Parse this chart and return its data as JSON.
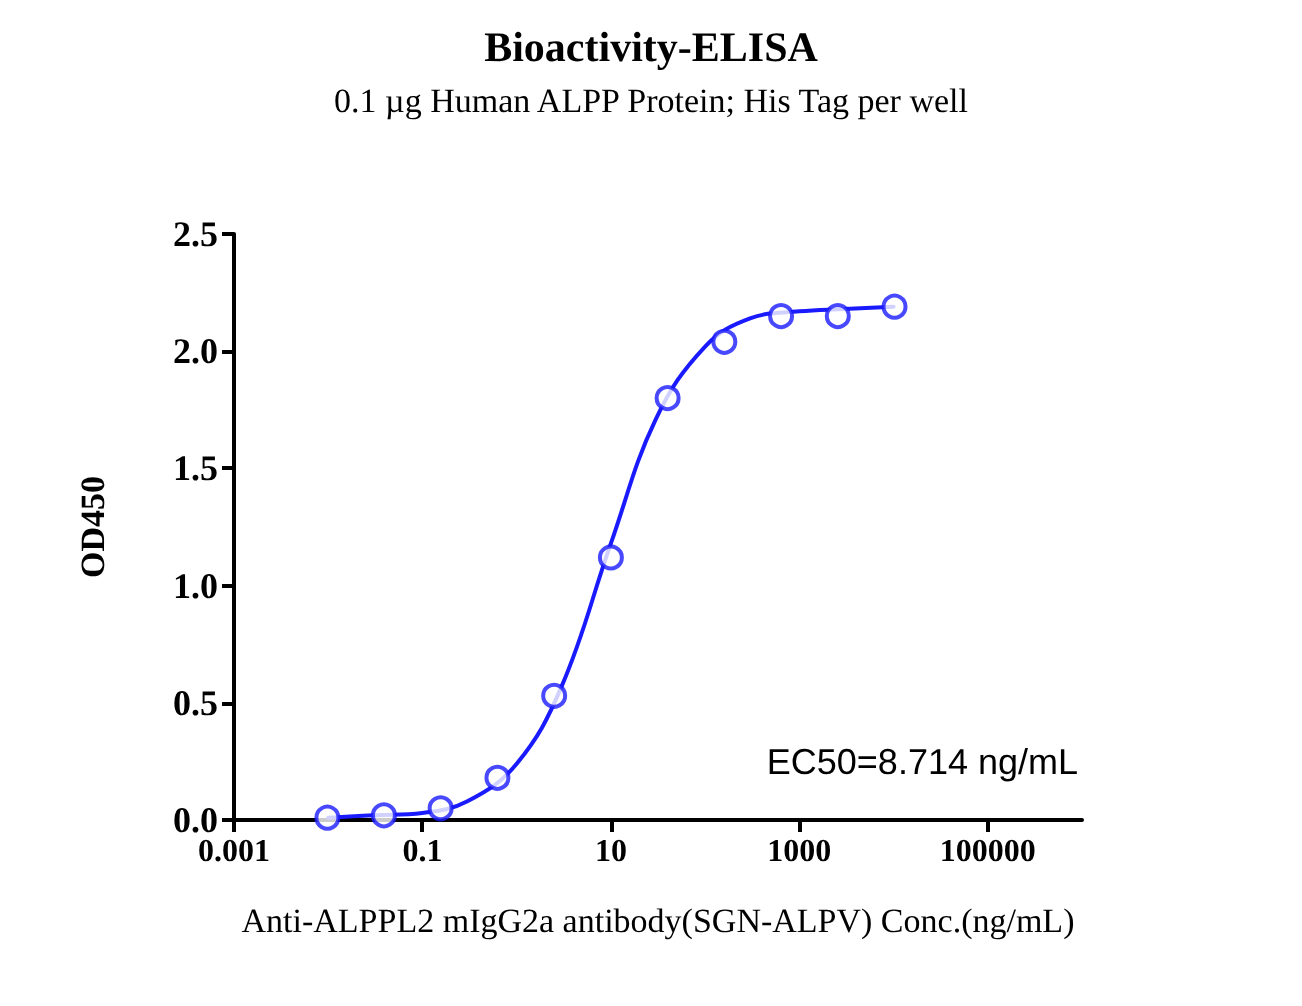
{
  "chart_data": {
    "type": "scatter",
    "title": "Bioactivity-ELISA",
    "subtitle": "0.1 µg Human ALPP Protein; His Tag per well",
    "xlabel": "Anti-ALPPL2 mIgG2a antibody(SGN-ALPV) Conc.(ng/mL)",
    "ylabel": "OD450",
    "log": "x",
    "grid": false,
    "xlim": [
      0.001,
      1000000
    ],
    "xticks": [
      0.001,
      0.1,
      10,
      1000,
      100000
    ],
    "ylim": [
      0,
      2.5
    ],
    "yticks": [
      {
        "value": 0,
        "label": "0.0"
      },
      {
        "value": 0.5,
        "label": "0.5"
      },
      {
        "value": 1,
        "label": "1.0"
      },
      {
        "value": 1.5,
        "label": "1.5"
      },
      {
        "value": 2,
        "label": "2.0"
      },
      {
        "value": 2.5,
        "label": "2.5"
      }
    ],
    "annotations": [
      "EC50=8.714 ng/mL"
    ],
    "series": [
      {
        "type": "line",
        "color": "#1a1aff",
        "marker": "none",
        "line_style": "solid",
        "x": [
          0.01,
          0.03,
          0.1,
          0.3,
          1,
          3,
          10,
          30,
          100,
          300,
          1000,
          3000,
          10000
        ],
        "values": [
          0.01,
          0.02,
          0.03,
          0.08,
          0.24,
          0.57,
          1.18,
          1.71,
          2.02,
          2.14,
          2.17,
          2.18,
          2.19
        ]
      },
      {
        "color": "#1a1aff",
        "marker": "circle",
        "x": [
          0.0098,
          0.039,
          0.156,
          0.625,
          2.5,
          10,
          40,
          160,
          640,
          2560,
          10240
        ],
        "values": [
          0.01,
          0.02,
          0.05,
          0.18,
          0.53,
          1.12,
          1.8,
          2.04,
          2.15,
          2.15,
          2.19
        ]
      }
    ]
  }
}
